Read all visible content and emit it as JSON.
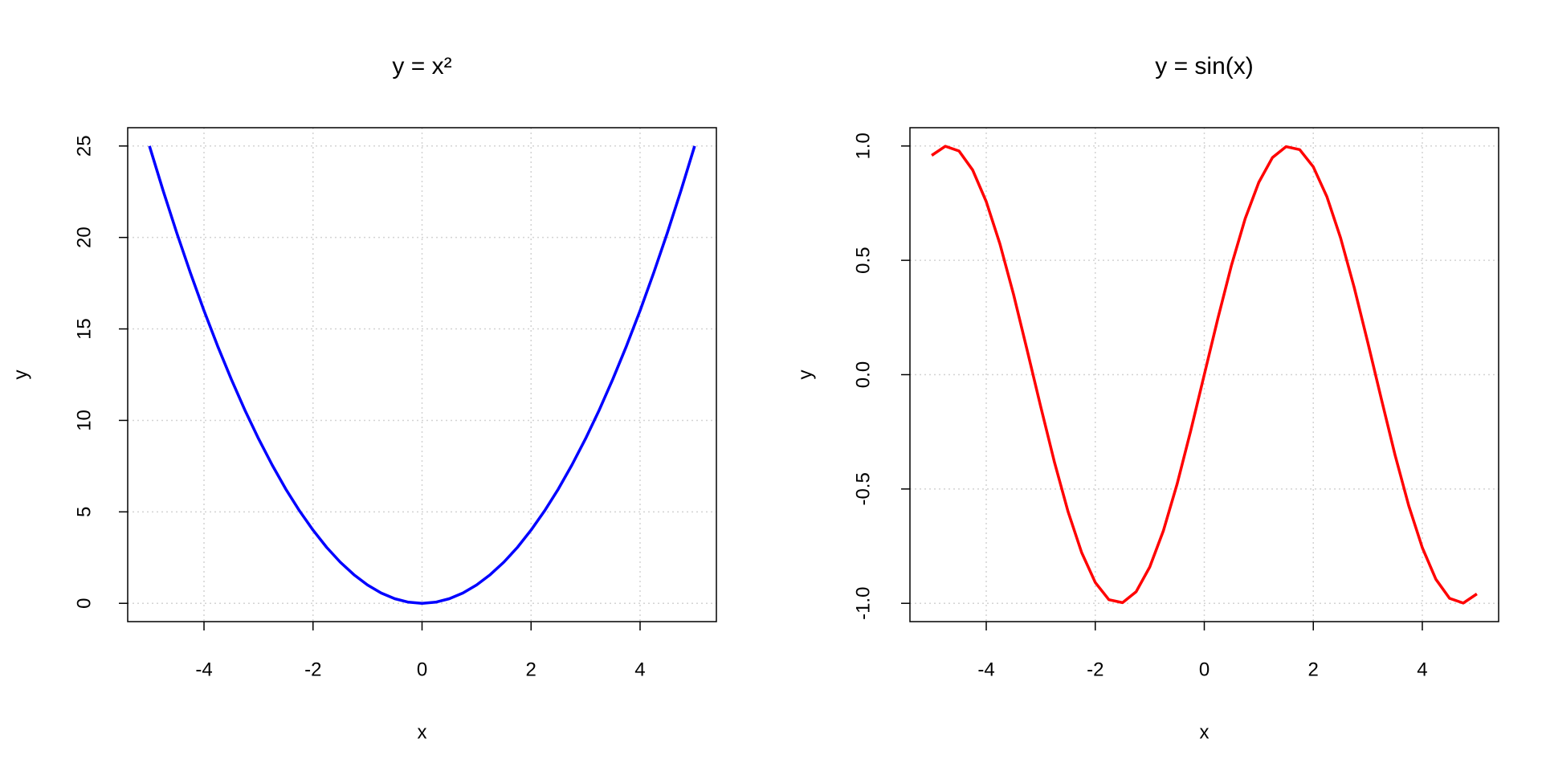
{
  "chart_data": [
    {
      "type": "line",
      "title": "y = x²",
      "xlabel": "x",
      "ylabel": "y",
      "x": [
        -5,
        -4.75,
        -4.5,
        -4.25,
        -4,
        -3.75,
        -3.5,
        -3.25,
        -3,
        -2.75,
        -2.5,
        -2.25,
        -2,
        -1.75,
        -1.5,
        -1.25,
        -1,
        -0.75,
        -0.5,
        -0.25,
        0,
        0.25,
        0.5,
        0.75,
        1,
        1.25,
        1.5,
        1.75,
        2,
        2.25,
        2.5,
        2.75,
        3,
        3.25,
        3.5,
        3.75,
        4,
        4.25,
        4.5,
        4.75,
        5
      ],
      "values": [
        25,
        22.5625,
        20.25,
        18.0625,
        16,
        14.0625,
        12.25,
        10.5625,
        9,
        7.5625,
        6.25,
        5.0625,
        4,
        3.0625,
        2.25,
        1.5625,
        1,
        0.5625,
        0.25,
        0.0625,
        0,
        0.0625,
        0.25,
        0.5625,
        1,
        1.5625,
        2.25,
        3.0625,
        4,
        5.0625,
        6.25,
        7.5625,
        9,
        10.5625,
        12.25,
        14.0625,
        16,
        18.0625,
        20.25,
        22.5625,
        25
      ],
      "color": "#0000ff",
      "xlim": [
        -5.4,
        5.4
      ],
      "ylim": [
        -1,
        26
      ],
      "xticks": [
        -4,
        -2,
        0,
        2,
        4
      ],
      "yticks": [
        0,
        5,
        10,
        15,
        20,
        25
      ],
      "grid": true
    },
    {
      "type": "line",
      "title": "y = sin(x)",
      "xlabel": "x",
      "ylabel": "y",
      "x": [
        -5,
        -4.75,
        -4.5,
        -4.25,
        -4,
        -3.75,
        -3.5,
        -3.25,
        -3,
        -2.75,
        -2.5,
        -2.25,
        -2,
        -1.75,
        -1.5,
        -1.25,
        -1,
        -0.75,
        -0.5,
        -0.25,
        0,
        0.25,
        0.5,
        0.75,
        1,
        1.25,
        1.5,
        1.75,
        2,
        2.25,
        2.5,
        2.75,
        3,
        3.25,
        3.5,
        3.75,
        4,
        4.25,
        4.5,
        4.75,
        5
      ],
      "values": [
        0.959,
        0.999,
        0.978,
        0.895,
        0.757,
        0.572,
        0.351,
        0.108,
        -0.141,
        -0.382,
        -0.598,
        -0.778,
        -0.909,
        -0.984,
        -0.997,
        -0.949,
        -0.841,
        -0.682,
        -0.479,
        -0.247,
        0,
        0.247,
        0.479,
        0.682,
        0.841,
        0.949,
        0.997,
        0.984,
        0.909,
        0.778,
        0.598,
        0.382,
        0.141,
        -0.108,
        -0.351,
        -0.572,
        -0.757,
        -0.895,
        -0.978,
        -0.999,
        -0.959
      ],
      "color": "#ff0000",
      "xlim": [
        -5.4,
        5.4
      ],
      "ylim": [
        -1.08,
        1.08
      ],
      "xticks": [
        -4,
        -2,
        0,
        2,
        4
      ],
      "yticks": [
        {
          "value": -1,
          "label": "-1.0"
        },
        {
          "value": -0.5,
          "label": "-0.5"
        },
        {
          "value": 0,
          "label": "0.0"
        },
        {
          "value": 0.5,
          "label": "0.5"
        },
        {
          "value": 1,
          "label": "1.0"
        }
      ],
      "grid": true
    }
  ]
}
